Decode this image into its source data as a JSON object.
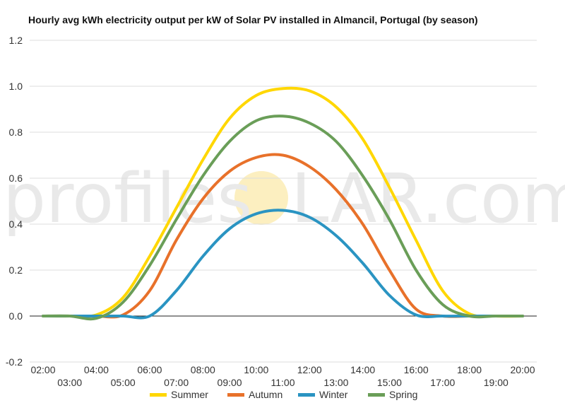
{
  "chart_data": {
    "type": "line",
    "title": "Hourly avg kWh electricity output per kW of Solar PV installed in Almancil, Portugal (by season)",
    "xlabel": "",
    "ylabel": "",
    "ylim": [
      -0.2,
      1.2
    ],
    "yticks": [
      "-0.2",
      "0.0",
      "0.2",
      "0.4",
      "0.6",
      "0.8",
      "1.0",
      "1.2"
    ],
    "grid": true,
    "legend_position": "bottom",
    "categories": [
      "02:00",
      "03:00",
      "04:00",
      "05:00",
      "06:00",
      "07:00",
      "08:00",
      "09:00",
      "10:00",
      "11:00",
      "12:00",
      "13:00",
      "14:00",
      "15:00",
      "16:00",
      "17:00",
      "18:00",
      "19:00",
      "20:00"
    ],
    "series": [
      {
        "name": "Summer",
        "color": "#ffd700",
        "values": [
          0.0,
          0.0,
          0.005,
          0.08,
          0.26,
          0.47,
          0.68,
          0.86,
          0.96,
          0.99,
          0.98,
          0.91,
          0.77,
          0.56,
          0.33,
          0.11,
          0.01,
          0.0,
          0.0
        ]
      },
      {
        "name": "Autumn",
        "color": "#e8712a",
        "values": [
          0.0,
          0.0,
          0.0,
          0.005,
          0.11,
          0.33,
          0.51,
          0.63,
          0.69,
          0.7,
          0.65,
          0.55,
          0.4,
          0.2,
          0.03,
          0.0,
          0.0,
          0.0,
          0.0
        ]
      },
      {
        "name": "Winter",
        "color": "#2a94c2",
        "values": [
          0.0,
          0.0,
          0.0,
          0.0,
          0.0,
          0.11,
          0.26,
          0.38,
          0.445,
          0.46,
          0.43,
          0.35,
          0.23,
          0.09,
          0.005,
          0.0,
          0.0,
          0.0,
          0.0
        ]
      },
      {
        "name": "Spring",
        "color": "#6a9e58",
        "values": [
          0.0,
          0.0,
          -0.01,
          0.06,
          0.22,
          0.42,
          0.61,
          0.76,
          0.85,
          0.87,
          0.84,
          0.76,
          0.61,
          0.42,
          0.2,
          0.05,
          0.0,
          0.0,
          0.0
        ]
      }
    ]
  },
  "watermark": {
    "left_text": "profiles",
    "right_text": "LAR.com",
    "sun_color": "#fcefc0"
  }
}
